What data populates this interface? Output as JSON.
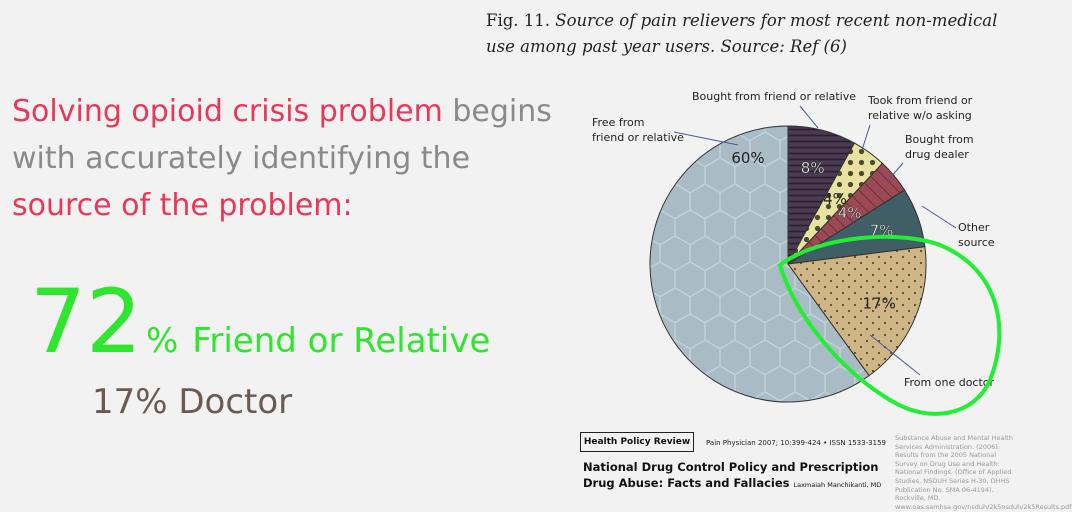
{
  "headline": {
    "part1": "Solving opioid crisis problem",
    "part2": " begins with accurately identifying the ",
    "part3": "source of the problem:"
  },
  "stat_main": {
    "value": "72",
    "percent_sign": "%",
    "label": "Friend or Relative"
  },
  "stat_doctor": "17% Doctor",
  "figure": {
    "prefix": "Fig. 11.",
    "caption": "Source of pain relievers for most recent non-medical use among past year users. Source: Ref (6)"
  },
  "chart_data": {
    "type": "pie",
    "slices": [
      {
        "label": "Bought from friend or relative",
        "value": 8,
        "value_label": "8%",
        "color": "#4a3b52",
        "pattern": "stripes"
      },
      {
        "label": "Took from friend or relative w/o asking",
        "value": 4,
        "value_label": "4%",
        "color": "#e8e3a0",
        "pattern": "dots"
      },
      {
        "label": "Bought from drug dealer",
        "value": 4,
        "value_label": "4%",
        "color": "#9b4a55",
        "pattern": "diagonal"
      },
      {
        "label": "Other source",
        "value": 7,
        "value_label": "7%",
        "color": "#3f5e66",
        "pattern": "none"
      },
      {
        "label": "From one doctor",
        "value": 17,
        "value_label": "17%",
        "color": "#cdb585",
        "pattern": "dots"
      },
      {
        "label": "Free from friend or relative",
        "value": 60,
        "value_label": "60%",
        "color": "#a9bcc6",
        "pattern": "hexagon"
      }
    ],
    "highlight": {
      "slice": "From one doctor",
      "color": "#22ee33"
    }
  },
  "footer": {
    "journal": "Health Policy Review",
    "citation": "Pain Physician 2007; 10:399-424 • ISSN 1533-3159",
    "article": "National Drug Control Policy and Prescription Drug Abuse: Facts and Fallacies",
    "author": "Laxmaiah Manchikanti, MD",
    "reference": "Substance Abuse and Mental Health Services Administration. (2006). Results from the 2005 National Survey on Drug Use and Health: National Findings. (Office of Applied Studies, NSDUH Series H-30, DHHS Publication No. SMA 06-4194). Rockville, MD. www.oas.samhsa.gov/nsduh/2k5nsduh/2k5Results.pdf"
  }
}
